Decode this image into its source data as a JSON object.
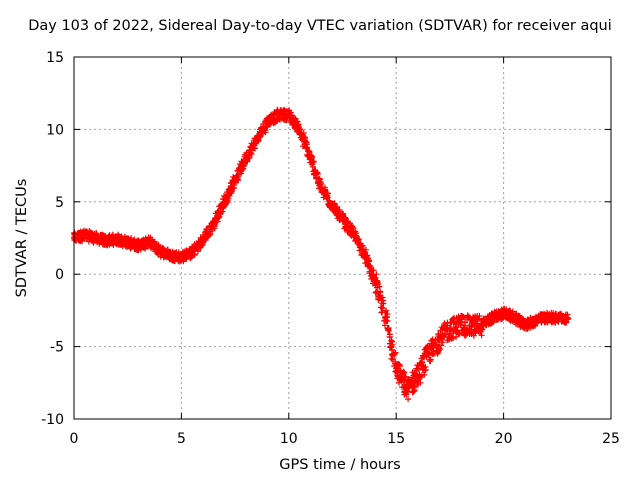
{
  "chart_data": {
    "type": "scatter",
    "title": "Day 103 of 2022, Sidereal Day-to-day VTEC variation (SDTVAR) for receiver aqui",
    "xlabel": "GPS time / hours",
    "ylabel": "SDTVAR / TECUs",
    "xlim": [
      0,
      25
    ],
    "ylim": [
      -10,
      15
    ],
    "xticks": [
      0,
      5,
      10,
      15,
      20,
      25
    ],
    "yticks": [
      -10,
      -5,
      0,
      5,
      10,
      15
    ],
    "grid": true,
    "marker": "plus",
    "color": "#ff0000",
    "series": [
      {
        "name": "SDTVAR",
        "x": [
          0,
          0.5,
          1,
          1.5,
          2,
          2.5,
          3,
          3.5,
          4,
          4.5,
          5,
          5.5,
          6,
          6.5,
          7,
          7.5,
          8,
          8.5,
          9,
          9.5,
          10,
          10.5,
          11,
          11.5,
          12,
          12.5,
          13,
          13.5,
          14,
          14.5,
          15,
          15.5,
          16,
          16.5,
          17,
          17.5,
          18,
          18.5,
          19,
          19.5,
          20,
          20.5,
          21,
          21.5,
          22,
          22.5,
          23
        ],
        "y": [
          2.5,
          2.7,
          2.5,
          2.3,
          2.4,
          2.2,
          2.0,
          2.2,
          1.6,
          1.3,
          1.2,
          1.5,
          2.3,
          3.5,
          5.0,
          6.5,
          8.0,
          9.3,
          10.5,
          11.0,
          11.0,
          10.0,
          8.0,
          6.0,
          4.8,
          3.8,
          2.8,
          1.5,
          -0.5,
          -3.0,
          -6.5,
          -8.0,
          -7.0,
          -5.5,
          -4.5,
          -3.8,
          -3.5,
          -3.6,
          -3.5,
          -3.0,
          -2.7,
          -3.0,
          -3.5,
          -3.2,
          -3.0,
          -3.0,
          -3.1
        ]
      }
    ]
  }
}
